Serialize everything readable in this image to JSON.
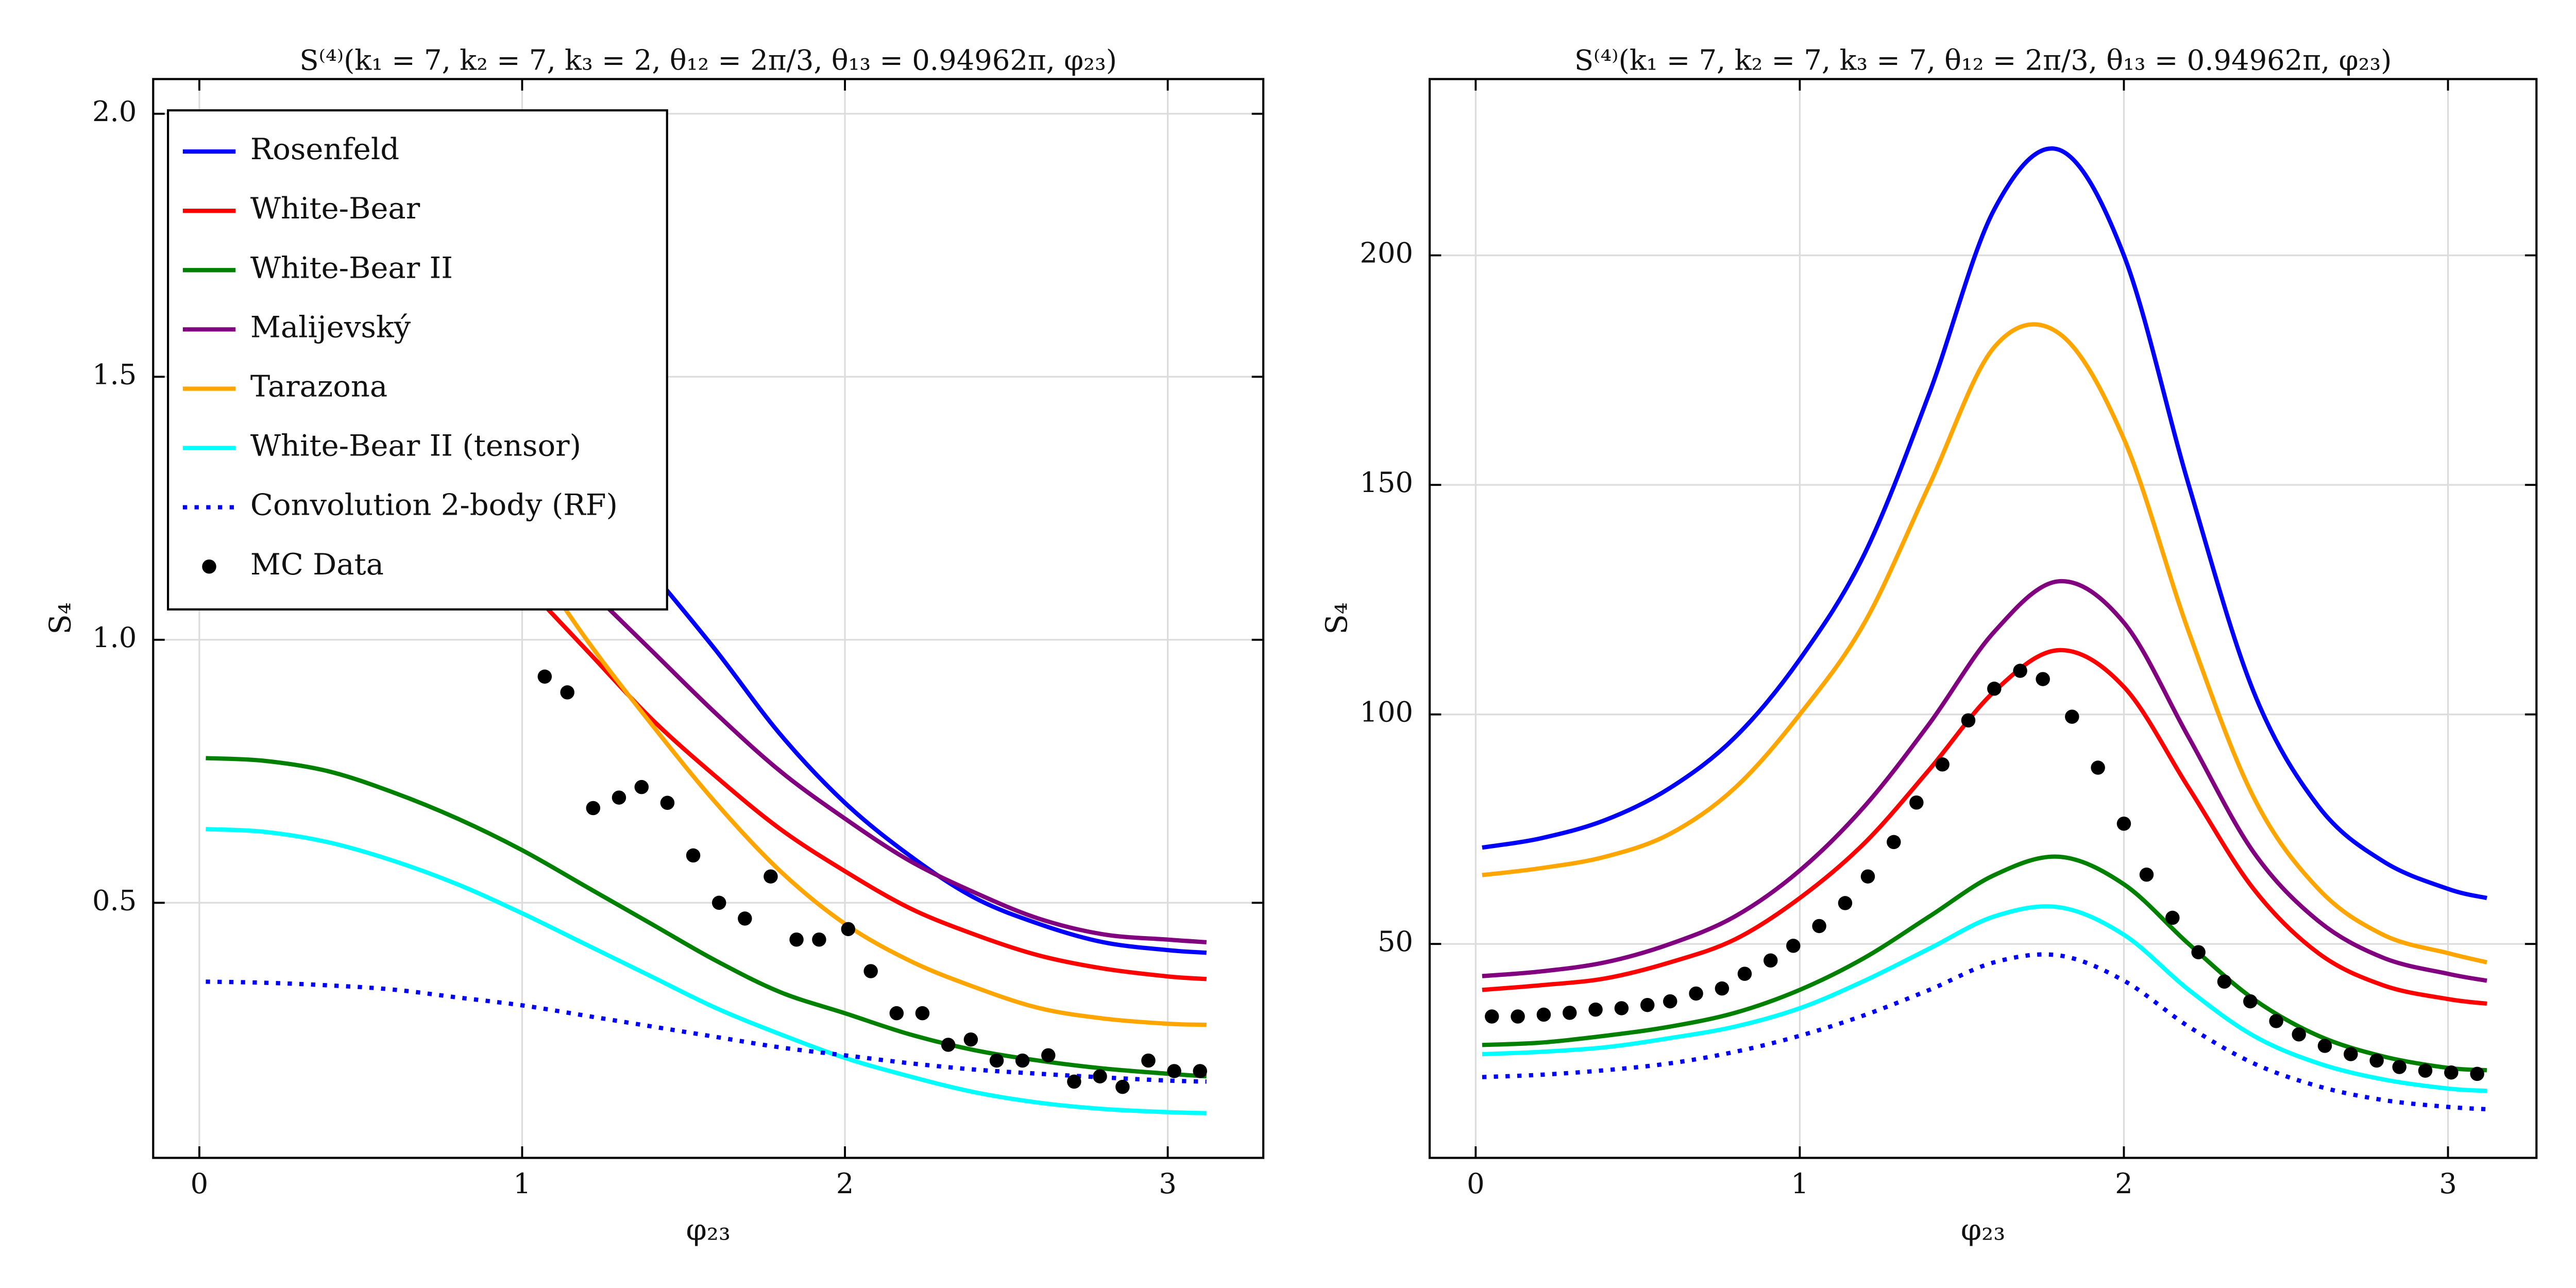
{
  "chart_data": [
    {
      "type": "line",
      "title": "S⁽⁴⁾(k₁ = 7, k₂ = 7, k₃ = 2, θ₁₂ = 2π/3, θ₁₃ = 0.94962π, φ₂₃)",
      "x_label": "φ₂₃",
      "y_label": "S₄",
      "xlim": [
        -0.143,
        3.296
      ],
      "ylim": [
        0.015,
        2.066
      ],
      "xticks": [
        0,
        1,
        2,
        3
      ],
      "yticks": [
        0.5,
        {
          "value": 1,
          "label": "1.0"
        },
        1.5,
        {
          "value": 2,
          "label": "2.0"
        }
      ],
      "grid": true,
      "legend": "upper left",
      "x": [
        0.02,
        0.2,
        0.4,
        0.6,
        0.8,
        1.0,
        1.2,
        1.4,
        1.6,
        1.8,
        2.0,
        2.2,
        2.4,
        2.6,
        2.8,
        3.0,
        3.12
      ],
      "series": [
        {
          "name": "Rosenfeld",
          "color": "#0000ff",
          "values": [
            null,
            null,
            null,
            null,
            null,
            null,
            1.28,
            1.13,
            0.98,
            0.82,
            0.69,
            0.59,
            0.51,
            0.46,
            0.425,
            0.41,
            0.405
          ]
        },
        {
          "name": "White-Bear",
          "color": "#ff0000",
          "values": [
            null,
            null,
            null,
            null,
            null,
            1.11,
            0.98,
            0.85,
            0.74,
            0.64,
            0.56,
            0.49,
            0.44,
            0.4,
            0.375,
            0.36,
            0.355
          ]
        },
        {
          "name": "White-Bear II",
          "color": "#008000",
          "values": [
            0.775,
            0.77,
            0.75,
            0.71,
            0.66,
            0.6,
            0.53,
            0.46,
            0.39,
            0.33,
            0.29,
            0.25,
            0.22,
            0.2,
            0.185,
            0.175,
            0.17
          ]
        },
        {
          "name": "Malijevský",
          "color": "#800080",
          "values": [
            null,
            null,
            null,
            null,
            null,
            1.22,
            1.1,
            0.98,
            0.86,
            0.75,
            0.66,
            0.58,
            0.52,
            0.47,
            0.44,
            0.43,
            0.425
          ]
        },
        {
          "name": "Tarazona",
          "color": "#ffa500",
          "values": [
            null,
            null,
            null,
            null,
            null,
            1.18,
            1.0,
            0.84,
            0.69,
            0.56,
            0.46,
            0.39,
            0.34,
            0.3,
            0.28,
            0.27,
            0.268
          ]
        },
        {
          "name": "White-Bear II (tensor)",
          "color": "#00ffff",
          "values": [
            0.64,
            0.635,
            0.615,
            0.58,
            0.535,
            0.48,
            0.42,
            0.36,
            0.3,
            0.25,
            0.205,
            0.17,
            0.14,
            0.12,
            0.108,
            0.102,
            0.1
          ]
        },
        {
          "name": "Convolution 2-body (RF)",
          "color": "#0000ff",
          "dashed": true,
          "values": [
            0.35,
            0.348,
            0.343,
            0.335,
            0.32,
            0.305,
            0.285,
            0.265,
            0.245,
            0.225,
            0.21,
            0.195,
            0.183,
            0.175,
            0.168,
            0.162,
            0.16
          ]
        }
      ],
      "scatter": {
        "name": "MC Data",
        "color": "#000000",
        "x": [
          1.07,
          1.14,
          1.22,
          1.3,
          1.37,
          1.45,
          1.53,
          1.61,
          1.69,
          1.77,
          1.85,
          1.92,
          2.01,
          2.08,
          2.16,
          2.24,
          2.32,
          2.39,
          2.47,
          2.55,
          2.63,
          2.71,
          2.79,
          2.86,
          2.94,
          3.02,
          3.1
        ],
        "values": [
          0.93,
          0.9,
          0.68,
          0.7,
          0.72,
          0.69,
          0.59,
          0.5,
          0.47,
          0.55,
          0.43,
          0.43,
          0.45,
          0.37,
          0.29,
          0.29,
          0.23,
          0.24,
          0.2,
          0.2,
          0.21,
          0.16,
          0.17,
          0.15,
          0.2,
          0.18,
          0.18
        ]
      }
    },
    {
      "type": "line",
      "title": "S⁽⁴⁾(k₁ = 7, k₂ = 7, k₃ = 7, θ₁₂ = 2π/3, θ₁₃ = 0.94962π, φ₂₃)",
      "x_label": "φ₂₃",
      "y_label": "S₄",
      "xlim": [
        -0.142,
        3.273
      ],
      "ylim": [
        3.4,
        238.4
      ],
      "xticks": [
        0,
        1,
        2,
        3
      ],
      "yticks": [
        50,
        100,
        150,
        200
      ],
      "grid": true,
      "x": [
        0.02,
        0.2,
        0.4,
        0.6,
        0.8,
        1.0,
        1.2,
        1.4,
        1.6,
        1.8,
        2.0,
        2.2,
        2.4,
        2.6,
        2.8,
        3.0,
        3.12
      ],
      "series": [
        {
          "color": "#0000ff",
          "values": [
            71,
            73,
            77,
            84,
            95,
            112,
            135,
            170,
            210,
            223,
            200,
            150,
            105,
            80,
            68,
            62,
            60
          ]
        },
        {
          "color": "#ffa500",
          "values": [
            65,
            66.5,
            69,
            74,
            84,
            100,
            120,
            150,
            180,
            183,
            160,
            118,
            82,
            62,
            52,
            48,
            46
          ]
        },
        {
          "color": "#800080",
          "values": [
            43,
            44,
            46,
            50,
            56,
            66,
            80,
            98,
            118,
            129,
            120,
            95,
            70,
            55,
            47,
            43.5,
            42
          ]
        },
        {
          "color": "#ff0000",
          "values": [
            40,
            41,
            42.5,
            46,
            51,
            60,
            72,
            88,
            105,
            114,
            106,
            84,
            62,
            48,
            41,
            38,
            37
          ]
        },
        {
          "color": "#008000",
          "values": [
            28,
            28.5,
            30,
            32,
            35,
            40,
            47,
            56,
            65,
            69,
            63,
            50,
            38,
            30,
            25.5,
            23,
            22.5
          ]
        },
        {
          "color": "#00ffff",
          "values": [
            26,
            26.5,
            27.5,
            29.5,
            32,
            36,
            42,
            49,
            56,
            58,
            52,
            40,
            30,
            24,
            20.5,
            18.5,
            18
          ]
        },
        {
          "color": "#0000ff",
          "dashed": true,
          "values": [
            21,
            21.5,
            22.5,
            24,
            26.5,
            30,
            34.5,
            40,
            46,
            47.5,
            42,
            32,
            24,
            19,
            16,
            14.5,
            14
          ]
        }
      ],
      "scatter": {
        "color": "#000000",
        "x": [
          0.05,
          0.13,
          0.21,
          0.29,
          0.37,
          0.45,
          0.53,
          0.6,
          0.68,
          0.76,
          0.83,
          0.91,
          0.98,
          1.06,
          1.14,
          1.21,
          1.29,
          1.36,
          1.44,
          1.52,
          1.6,
          1.68,
          1.75,
          1.84,
          1.92,
          2.0,
          2.07,
          2.15,
          2.23,
          2.31,
          2.39,
          2.47,
          2.54,
          2.62,
          2.7,
          2.78,
          2.85,
          2.93,
          3.01,
          3.09
        ],
        "values": [
          34.2,
          34.2,
          34.6,
          35.0,
          35.7,
          36.0,
          36.7,
          37.5,
          39.2,
          40.3,
          43.5,
          46.4,
          49.6,
          53.9,
          58.9,
          64.7,
          72.2,
          80.8,
          89.1,
          98.7,
          105.6,
          109.5,
          107.7,
          99.5,
          88.4,
          76.2,
          65.1,
          55.7,
          48.2,
          41.8,
          37.5,
          33.2,
          30.3,
          27.8,
          26.0,
          24.6,
          23.2,
          22.4,
          22.0,
          21.7
        ]
      }
    }
  ]
}
